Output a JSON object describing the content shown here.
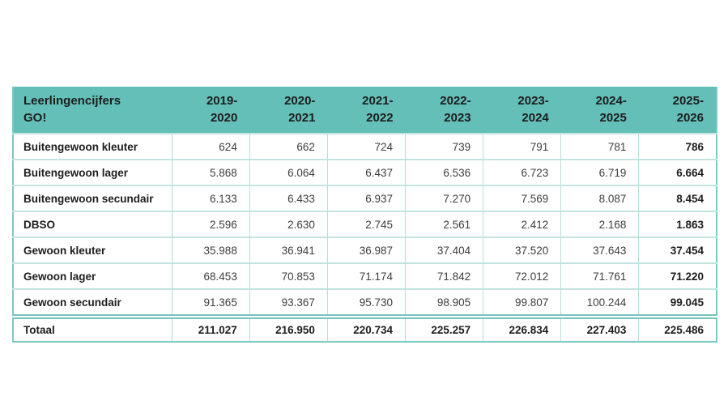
{
  "chart_data": {
    "type": "table",
    "title": "Leerlingencijfers GO!",
    "title_line1": "Leerlingencijfers",
    "title_line2": "GO!",
    "columns": [
      {
        "label": "2019-2020",
        "line1": "2019-",
        "line2": "2020"
      },
      {
        "label": "2020-2021",
        "line1": "2020-",
        "line2": "2021"
      },
      {
        "label": "2021-2022",
        "line1": "2021-",
        "line2": "2022"
      },
      {
        "label": "2022-2023",
        "line1": "2022-",
        "line2": "2023"
      },
      {
        "label": "2023-2024",
        "line1": "2023-",
        "line2": "2024"
      },
      {
        "label": "2024-2025",
        "line1": "2024-",
        "line2": "2025"
      },
      {
        "label": "2025-2026",
        "line1": "2025-",
        "line2": "2026"
      }
    ],
    "rows": [
      {
        "label": "Buitengewoon kleuter",
        "values": [
          "624",
          "662",
          "724",
          "739",
          "791",
          "781",
          "786"
        ]
      },
      {
        "label": "Buitengewoon lager",
        "values": [
          "5.868",
          "6.064",
          "6.437",
          "6.536",
          "6.723",
          "6.719",
          "6.664"
        ]
      },
      {
        "label": "Buitengewoon secundair",
        "values": [
          "6.133",
          "6.433",
          "6.937",
          "7.270",
          "7.569",
          "8.087",
          "8.454"
        ]
      },
      {
        "label": "DBSO",
        "values": [
          "2.596",
          "2.630",
          "2.745",
          "2.561",
          "2.412",
          "2.168",
          "1.863"
        ]
      },
      {
        "label": "Gewoon kleuter",
        "values": [
          "35.988",
          "36.941",
          "36.987",
          "37.404",
          "37.520",
          "37.643",
          "37.454"
        ]
      },
      {
        "label": "Gewoon lager",
        "values": [
          "68.453",
          "70.853",
          "71.174",
          "71.842",
          "72.012",
          "71.761",
          "71.220"
        ]
      },
      {
        "label": "Gewoon secundair",
        "values": [
          "91.365",
          "93.367",
          "95.730",
          "98.905",
          "99.807",
          "100.244",
          "99.045"
        ]
      }
    ],
    "total": {
      "label": "Totaal",
      "values": [
        "211.027",
        "216.950",
        "220.734",
        "225.257",
        "226.834",
        "227.403",
        "225.486"
      ]
    },
    "layout": {
      "last_column_bold": true,
      "total_row_bold": true,
      "grid": true
    }
  },
  "colors": {
    "header_bg": "#63bfb8",
    "grid_line_horizontal": "#c2e4df",
    "grid_line_vertical": "#a9dad5",
    "outer_border": "#7ccac3",
    "double_rule": "#74c4bd",
    "text_dark": "#1d1d1d",
    "text_number": "#3d3d3d",
    "page_bg": "#ffffff"
  }
}
